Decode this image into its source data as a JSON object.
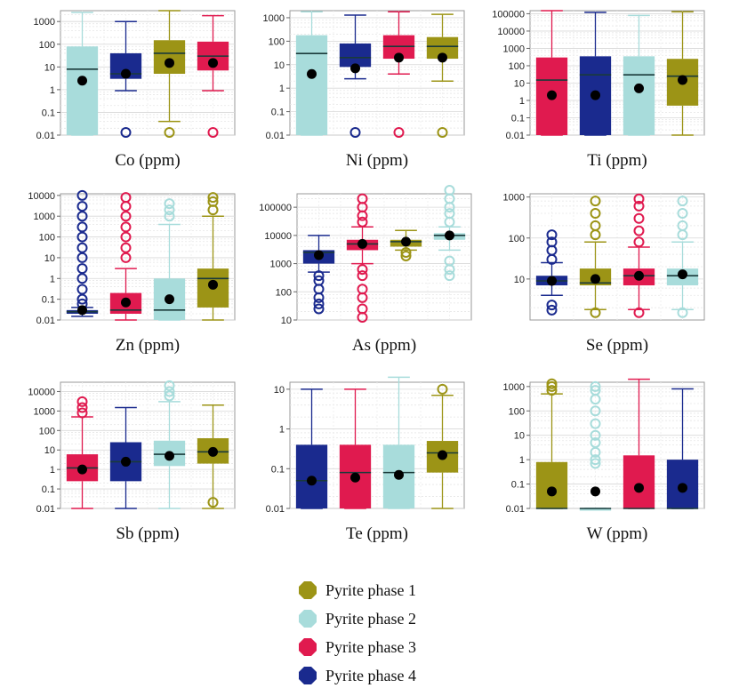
{
  "legend": [
    {
      "name": "Pyrite phase 1",
      "color": "#9c9416"
    },
    {
      "name": "Pyrite phase 2",
      "color": "#a8dcdb"
    },
    {
      "name": "Pyrite phase 3",
      "color": "#e01a4f"
    },
    {
      "name": "Pyrite phase 4",
      "color": "#1a2a8e"
    }
  ],
  "chart_data": [
    {
      "type": "box",
      "title": "Co (ppm)",
      "yscale": "log",
      "ylim": [
        0.01,
        3000
      ],
      "yticks": [
        "1000",
        "100",
        "10",
        "1",
        "0.1",
        "0.01"
      ],
      "series": [
        {
          "name": "Pyrite phase 2",
          "min": 0.01,
          "q1": 0.01,
          "median": 8,
          "q3": 80,
          "max": 2500,
          "mean": 2.5,
          "outliers_low": []
        },
        {
          "name": "Pyrite phase 4",
          "min": 0.9,
          "q1": 3,
          "median": 5,
          "q3": 40,
          "max": 1000,
          "mean": 5,
          "outliers_low": [
            0.01
          ]
        },
        {
          "name": "Pyrite phase 1",
          "min": 0.04,
          "q1": 5,
          "median": 40,
          "q3": 150,
          "max": 3000,
          "mean": 15,
          "outliers_low": [
            0.01
          ]
        },
        {
          "name": "Pyrite phase 3",
          "min": 0.9,
          "q1": 7,
          "median": 30,
          "q3": 130,
          "max": 1800,
          "mean": 15,
          "outliers_low": [
            0.01
          ]
        }
      ]
    },
    {
      "type": "box",
      "title": "Ni (ppm)",
      "yscale": "log",
      "ylim": [
        0.01,
        2000
      ],
      "yticks": [
        "1000",
        "100",
        "10",
        "1",
        "0.1",
        "0.01"
      ],
      "series": [
        {
          "name": "Pyrite phase 2",
          "min": 0.01,
          "q1": 0.01,
          "median": 30,
          "q3": 180,
          "max": 1800,
          "mean": 4,
          "outliers_low": []
        },
        {
          "name": "Pyrite phase 4",
          "min": 2.5,
          "q1": 8,
          "median": 20,
          "q3": 80,
          "max": 1300,
          "mean": 7,
          "outliers_low": [
            0.01
          ]
        },
        {
          "name": "Pyrite phase 3",
          "min": 4,
          "q1": 18,
          "median": 60,
          "q3": 180,
          "max": 1800,
          "mean": 20,
          "outliers_low": [
            0.01
          ]
        },
        {
          "name": "Pyrite phase 1",
          "min": 2,
          "q1": 18,
          "median": 60,
          "q3": 150,
          "max": 1400,
          "mean": 20,
          "outliers_low": [
            0.01
          ]
        }
      ]
    },
    {
      "type": "box",
      "title": "Ti (ppm)",
      "yscale": "log",
      "ylim": [
        0.01,
        150000
      ],
      "yticks": [
        "100000",
        "10000",
        "1000",
        "100",
        "10",
        "1",
        "0.1",
        "0.01"
      ],
      "series": [
        {
          "name": "Pyrite phase 3",
          "min": 0.01,
          "q1": 0.01,
          "median": 15,
          "q3": 300,
          "max": 150000,
          "mean": 2,
          "outliers_low": []
        },
        {
          "name": "Pyrite phase 4",
          "min": 0.01,
          "q1": 0.01,
          "median": 30,
          "q3": 350,
          "max": 120000,
          "mean": 2,
          "outliers_low": []
        },
        {
          "name": "Pyrite phase 2",
          "min": 0.01,
          "q1": 0.01,
          "median": 30,
          "q3": 350,
          "max": 80000,
          "mean": 5,
          "outliers_low": []
        },
        {
          "name": "Pyrite phase 1",
          "min": 0.01,
          "q1": 0.5,
          "median": 25,
          "q3": 250,
          "max": 130000,
          "mean": 15,
          "outliers_low": []
        }
      ]
    },
    {
      "type": "box",
      "title": "Zn (ppm)",
      "yscale": "log",
      "ylim": [
        0.01,
        12000
      ],
      "yticks": [
        "10000",
        "1000",
        "100",
        "10",
        "1",
        "0.1",
        "0.01"
      ],
      "series": [
        {
          "name": "Pyrite phase 4",
          "min": 0.015,
          "q1": 0.02,
          "median": 0.025,
          "q3": 0.03,
          "max": 0.04,
          "mean": 0.03,
          "outliers_high": [
            0.06,
            0.1,
            0.3,
            1,
            3,
            10,
            30,
            100,
            300,
            1000,
            3000,
            10000
          ]
        },
        {
          "name": "Pyrite phase 3",
          "min": 0.01,
          "q1": 0.02,
          "median": 0.03,
          "q3": 0.2,
          "max": 3,
          "mean": 0.07,
          "outliers_high": [
            10,
            30,
            100,
            300,
            1000,
            3000,
            8000
          ]
        },
        {
          "name": "Pyrite phase 2",
          "min": 0.01,
          "q1": 0.01,
          "median": 0.03,
          "q3": 1,
          "max": 400,
          "mean": 0.1,
          "outliers_high": [
            1000,
            2000,
            4000
          ]
        },
        {
          "name": "Pyrite phase 1",
          "min": 0.01,
          "q1": 0.04,
          "median": 1,
          "q3": 3,
          "max": 1000,
          "mean": 0.5,
          "outliers_high": [
            2000,
            5000,
            8000
          ]
        }
      ]
    },
    {
      "type": "box",
      "title": "As (ppm)",
      "yscale": "log",
      "ylim": [
        10,
        300000
      ],
      "yticks": [
        "100000",
        "10000",
        "1000",
        "100",
        "10"
      ],
      "series": [
        {
          "name": "Pyrite phase 4",
          "min": 500,
          "q1": 1000,
          "median": 2500,
          "q3": 3000,
          "max": 10000,
          "mean": 2000,
          "outliers_low": [
            20,
            30,
            50,
            100,
            200,
            300
          ]
        },
        {
          "name": "Pyrite phase 3",
          "min": 1000,
          "q1": 3000,
          "median": 5000,
          "q3": 7000,
          "max": 20000,
          "mean": 5000,
          "outliers_high": [
            30000,
            50000,
            100000,
            200000
          ],
          "outliers_low": [
            10,
            20,
            50,
            100,
            300,
            500
          ]
        },
        {
          "name": "Pyrite phase 1",
          "min": 3000,
          "q1": 4000,
          "median": 6000,
          "q3": 7000,
          "max": 15000,
          "mean": 6000,
          "outliers_low": [
            1500,
            2000
          ]
        },
        {
          "name": "Pyrite phase 2",
          "min": 3000,
          "q1": 7000,
          "median": 10000,
          "q3": 12000,
          "max": 20000,
          "mean": 10000,
          "outliers_high": [
            30000,
            60000,
            100000,
            200000,
            400000
          ],
          "outliers_low": [
            300,
            500,
            1000
          ]
        }
      ]
    },
    {
      "type": "box",
      "title": "Se (ppm)",
      "yscale": "log",
      "ylim": [
        1,
        1200
      ],
      "yticks": [
        "1000",
        "100",
        "10"
      ],
      "series": [
        {
          "name": "Pyrite phase 4",
          "min": 4,
          "q1": 7,
          "median": 9,
          "q3": 12,
          "max": 25,
          "mean": 9,
          "outliers_high": [
            30,
            50,
            80,
            120
          ],
          "outliers_low": [
            1.5,
            2
          ]
        },
        {
          "name": "Pyrite phase 1",
          "min": 1.8,
          "q1": 7,
          "median": 8,
          "q3": 18,
          "max": 80,
          "mean": 10,
          "outliers_high": [
            120,
            200,
            400,
            800
          ],
          "outliers_low": [
            1.3
          ]
        },
        {
          "name": "Pyrite phase 3",
          "min": 1.8,
          "q1": 7,
          "median": 12,
          "q3": 18,
          "max": 60,
          "mean": 12,
          "outliers_high": [
            80,
            150,
            300,
            600,
            900
          ],
          "outliers_low": [
            1.3
          ]
        },
        {
          "name": "Pyrite phase 2",
          "min": 1.8,
          "q1": 7,
          "median": 12,
          "q3": 18,
          "max": 80,
          "mean": 13,
          "outliers_high": [
            120,
            200,
            400,
            800
          ],
          "outliers_low": [
            1.3
          ]
        }
      ]
    },
    {
      "type": "box",
      "title": "Sb (ppm)",
      "yscale": "log",
      "ylim": [
        0.01,
        30000
      ],
      "yticks": [
        "10000",
        "1000",
        "100",
        "10",
        "1",
        "0.1",
        "0.01"
      ],
      "series": [
        {
          "name": "Pyrite phase 3",
          "min": 0.01,
          "q1": 0.25,
          "median": 1.2,
          "q3": 6,
          "max": 500,
          "mean": 1,
          "outliers_high": [
            800,
            1500,
            3000
          ]
        },
        {
          "name": "Pyrite phase 4",
          "min": 0.01,
          "q1": 0.25,
          "median": 2.5,
          "q3": 25,
          "max": 1500,
          "mean": 2.5,
          "outliers_high": []
        },
        {
          "name": "Pyrite phase 2",
          "min": 0.01,
          "q1": 1.5,
          "median": 6,
          "q3": 30,
          "max": 3000,
          "mean": 5,
          "outliers_high": [
            6000,
            10000,
            20000
          ]
        },
        {
          "name": "Pyrite phase 1",
          "min": 0.01,
          "q1": 2,
          "median": 8,
          "q3": 40,
          "max": 2000,
          "mean": 8,
          "outliers_low": [
            0.015
          ]
        }
      ]
    },
    {
      "type": "box",
      "title": "Te (ppm)",
      "yscale": "log",
      "ylim": [
        0.01,
        15
      ],
      "yticks": [
        "10",
        "1",
        "0.1",
        "0.01"
      ],
      "series": [
        {
          "name": "Pyrite phase 4",
          "min": 0.01,
          "q1": 0.01,
          "median": 0.05,
          "q3": 0.4,
          "max": 10,
          "mean": 0.05,
          "outliers_high": []
        },
        {
          "name": "Pyrite phase 3",
          "min": 0.01,
          "q1": 0.01,
          "median": 0.08,
          "q3": 0.4,
          "max": 10,
          "mean": 0.06,
          "outliers_high": []
        },
        {
          "name": "Pyrite phase 2",
          "min": 0.01,
          "q1": 0.01,
          "median": 0.08,
          "q3": 0.4,
          "max": 20,
          "mean": 0.07,
          "outliers_high": []
        },
        {
          "name": "Pyrite phase 1",
          "min": 0.01,
          "q1": 0.08,
          "median": 0.25,
          "q3": 0.5,
          "max": 7,
          "mean": 0.22,
          "outliers_high": [
            10
          ]
        }
      ]
    },
    {
      "type": "box",
      "title": "W (ppm)",
      "yscale": "log",
      "ylim": [
        0.01,
        1500
      ],
      "yticks": [
        "1000",
        "100",
        "10",
        "1",
        "0.1",
        "0.01"
      ],
      "series": [
        {
          "name": "Pyrite phase 1",
          "min": 0.01,
          "q1": 0.01,
          "median": 0.01,
          "q3": 0.8,
          "max": 500,
          "mean": 0.05,
          "outliers_high": [
            700,
            1000,
            1300
          ]
        },
        {
          "name": "Pyrite phase 2",
          "min": 0.01,
          "q1": 0.01,
          "median": 0.01,
          "q3": 0.01,
          "max": 0.01,
          "mean": 0.05,
          "outliers_high": [
            0.7,
            1,
            2,
            5,
            10,
            30,
            100,
            300,
            700,
            1000
          ]
        },
        {
          "name": "Pyrite phase 3",
          "min": 0.01,
          "q1": 0.01,
          "median": 0.01,
          "q3": 1.5,
          "max": 2000,
          "mean": 0.07,
          "outliers_high": []
        },
        {
          "name": "Pyrite phase 4",
          "min": 0.01,
          "q1": 0.01,
          "median": 0.01,
          "q3": 1,
          "max": 800,
          "mean": 0.07,
          "outliers_high": []
        }
      ]
    }
  ]
}
